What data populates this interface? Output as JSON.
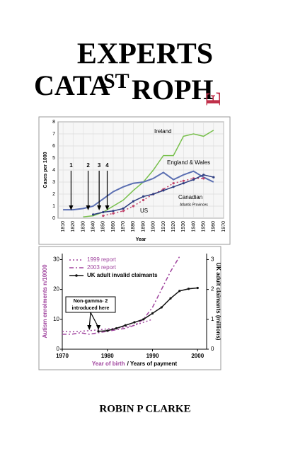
{
  "cover": {
    "title": "EXPERTS",
    "title_parts": [
      "CATA",
      "ST",
      "ROPH",
      "E"
    ],
    "author": "ROBIN P CLARKE"
  },
  "chart_data": [
    {
      "type": "line",
      "ylabel": "Cases per 1000",
      "xlabel": "Year",
      "x": [
        1810,
        1820,
        1830,
        1840,
        1850,
        1860,
        1870,
        1880,
        1890,
        1900,
        1910,
        1920,
        1930,
        1940,
        1950,
        1960
      ],
      "xlim": [
        1805,
        1970
      ],
      "xticks": [
        1810,
        1820,
        1830,
        1840,
        1850,
        1860,
        1870,
        1880,
        1890,
        1900,
        1910,
        1920,
        1930,
        1940,
        1950,
        1960,
        1970
      ],
      "ylim": [
        0,
        8
      ],
      "yticks": [
        0,
        1,
        2,
        3,
        4,
        5,
        6,
        7,
        8
      ],
      "grid": true,
      "series": [
        {
          "name": "Ireland",
          "color": "#78c04c",
          "dash": "solid",
          "marker": false,
          "values": [
            null,
            null,
            0.1,
            0.2,
            0.5,
            1.0,
            1.5,
            2.3,
            3.0,
            4.0,
            5.2,
            5.2,
            6.8,
            7.0,
            6.8,
            7.3
          ]
        },
        {
          "name": "England & Wales",
          "color": "#5b6fb2",
          "dash": "solid",
          "marker": false,
          "values": [
            0.7,
            0.7,
            0.8,
            1.0,
            1.6,
            2.2,
            2.6,
            2.9,
            3.0,
            3.3,
            3.8,
            3.2,
            3.6,
            3.9,
            3.4,
            3.0
          ]
        },
        {
          "name": "Canadian",
          "color": "#c04068",
          "dash": "dotted",
          "marker": true,
          "values": [
            null,
            null,
            null,
            null,
            0.2,
            0.4,
            0.6,
            1.0,
            1.5,
            2.0,
            2.4,
            2.9,
            3.1,
            3.3,
            3.3,
            null
          ]
        },
        {
          "name": "US",
          "color": "#2c3c80",
          "dash": "solid",
          "marker": true,
          "values": [
            null,
            null,
            null,
            0.3,
            0.5,
            0.6,
            0.8,
            1.4,
            1.8,
            2.0,
            2.3,
            2.6,
            2.9,
            3.2,
            3.6,
            3.4
          ]
        }
      ],
      "note": "Atlantic Provinces",
      "arrows": [
        {
          "text": "1",
          "x": 1818
        },
        {
          "text": "2",
          "x": 1835
        },
        {
          "text": "3",
          "x": 1846
        },
        {
          "text": "4",
          "x": 1854
        }
      ]
    },
    {
      "type": "line",
      "ylabel": "Autism enrolments n/10000",
      "y2label": "UK adult claimants (millions)",
      "xlabel": "Year of birth",
      "x2label": "/ Years of payment",
      "x": [
        1970,
        1972,
        1974,
        1976,
        1978,
        1980,
        1982,
        1984,
        1986,
        1988,
        1990,
        1992,
        1994,
        1996,
        1998,
        2000
      ],
      "xlim": [
        1970,
        2002
      ],
      "xticks": [
        1970,
        1980,
        1990,
        2000
      ],
      "ylim": [
        0,
        32
      ],
      "yticks": [
        0,
        10,
        20,
        30
      ],
      "y2lim": [
        0,
        3.2
      ],
      "y2ticks": [
        0,
        1,
        2,
        3
      ],
      "grid": false,
      "series": [
        {
          "name": "1999 report",
          "color": "#a0449e",
          "dash": "dotted",
          "marker": false,
          "values": [
            6,
            5.8,
            6,
            6.2,
            6.5,
            6.8,
            7,
            7.5,
            8,
            9,
            10,
            null,
            null,
            null,
            null,
            null
          ]
        },
        {
          "name": "2003 report",
          "color": "#a0449e",
          "dash": "dashdot",
          "marker": false,
          "values": [
            5,
            5,
            5.5,
            5,
            5.5,
            6,
            6.5,
            7,
            8,
            10,
            14,
            20,
            26,
            31,
            null,
            null
          ]
        },
        {
          "name": "UK adult invalid claimants",
          "color": "#111111",
          "dash": "solid",
          "marker": true,
          "axis": "y2",
          "values": [
            null,
            null,
            null,
            null,
            0.6,
            0.62,
            0.7,
            0.8,
            0.9,
            1.0,
            1.2,
            1.4,
            1.7,
            1.95,
            2.02,
            2.05
          ]
        }
      ],
      "annotation": {
        "text": [
          "Non-gamma- 2",
          "introduced here"
        ],
        "x": [
          1976,
          1978
        ]
      }
    }
  ]
}
